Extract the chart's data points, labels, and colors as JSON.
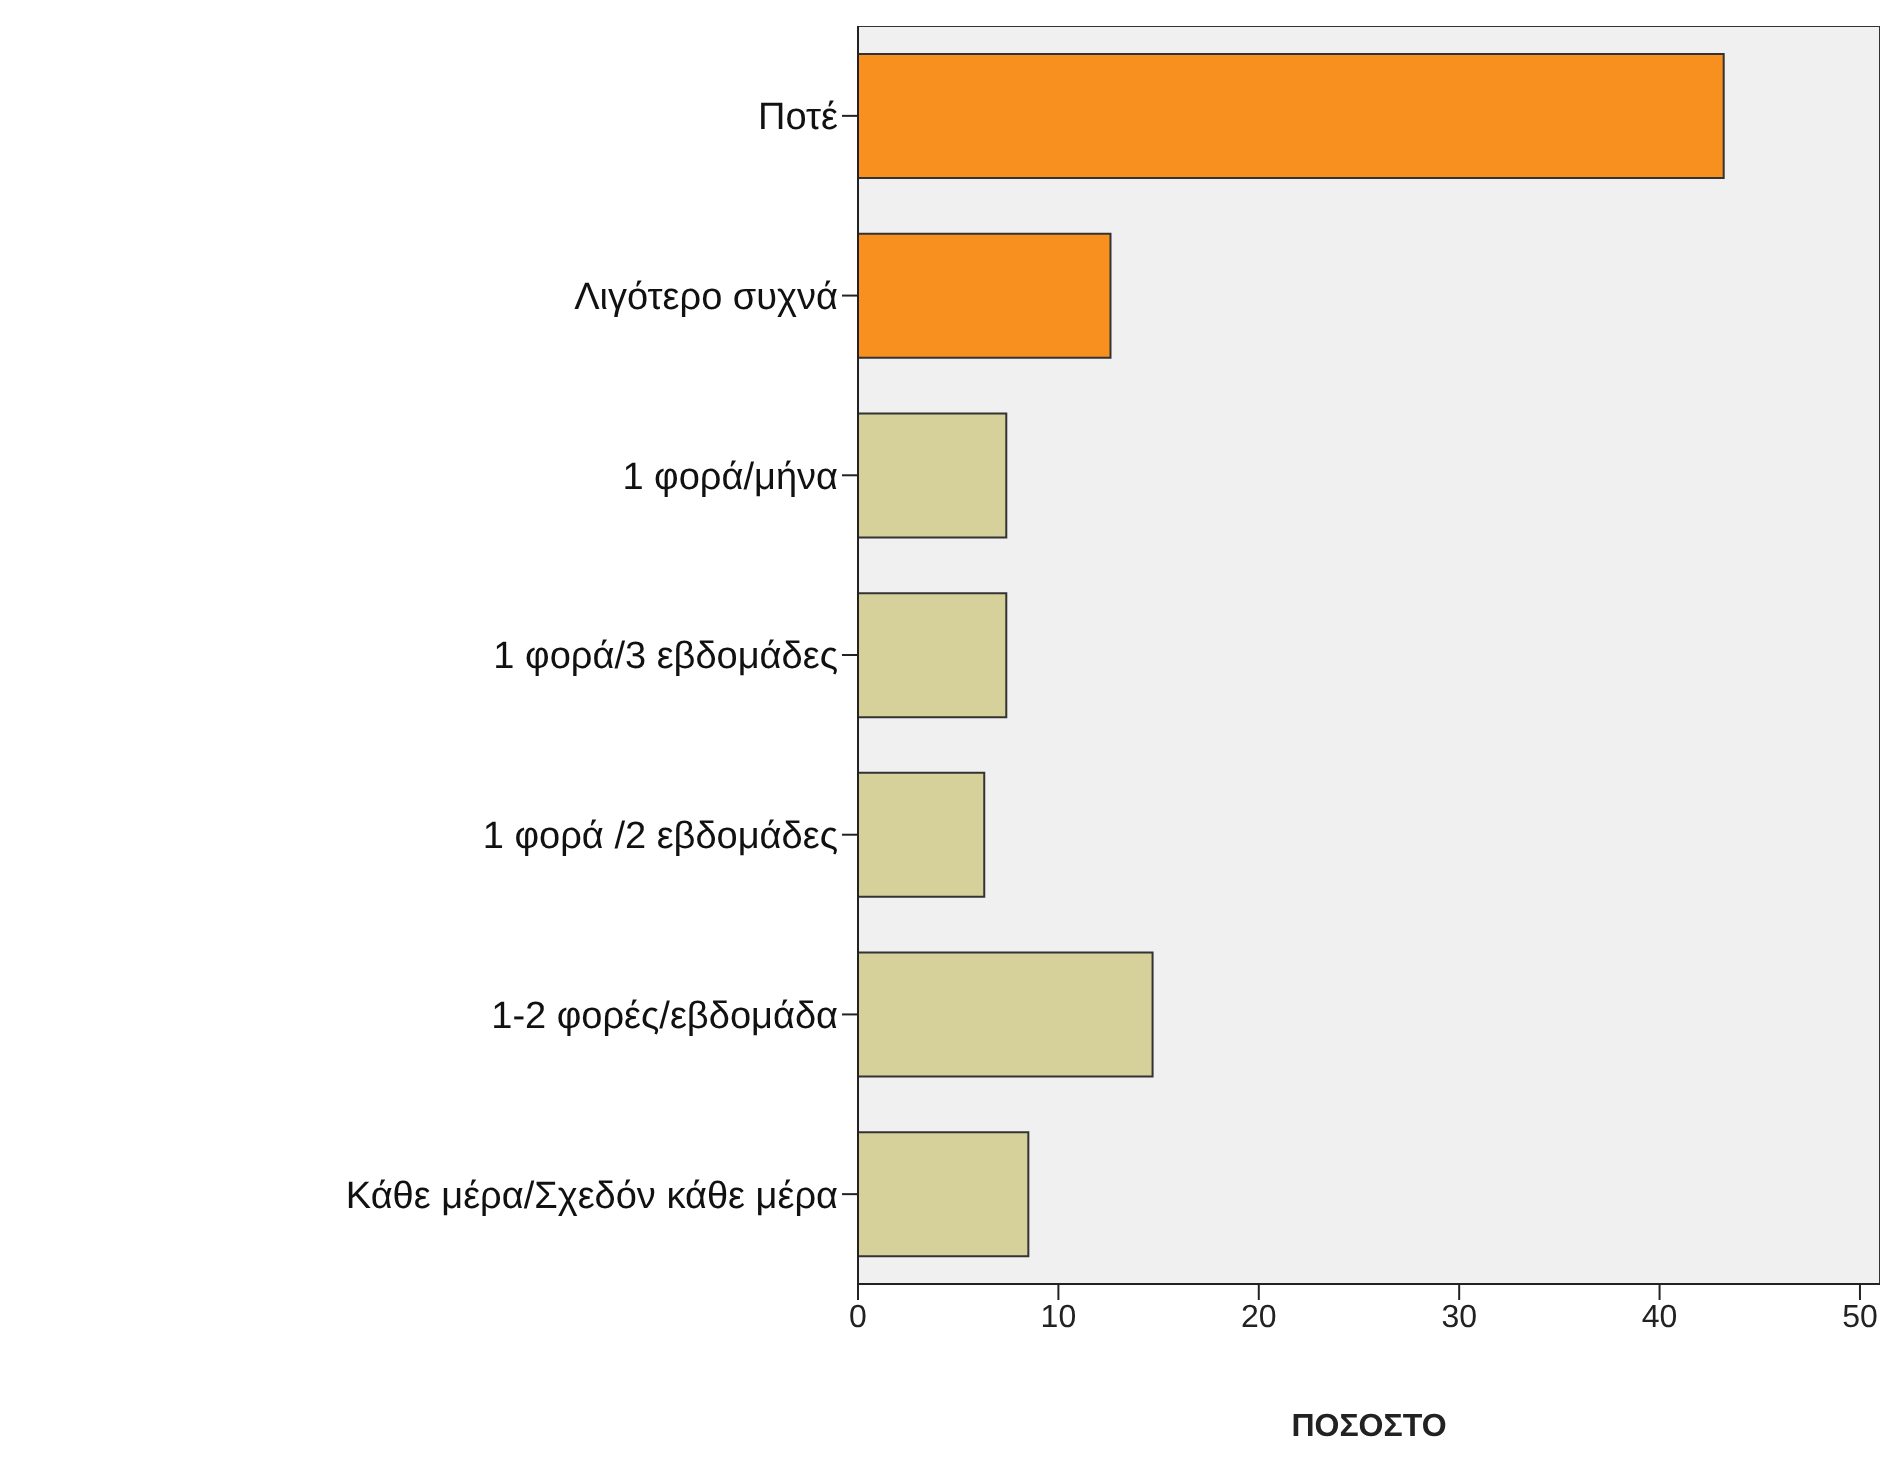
{
  "chart_data": {
    "type": "bar",
    "orientation": "horizontal",
    "xlabel": "ΠΟΣΟΣΤΟ",
    "categories": [
      "Ποτέ",
      "Λιγότερο συχνά",
      "1 φορά/μήνα",
      "1 φορά/3 εβδομάδες",
      "1 φορά /2 εβδομάδες",
      "1-2 φορές/εβδομάδα",
      "Κάθε μέρα/Σχεδόν κάθε μέρα"
    ],
    "values": [
      43.2,
      12.6,
      7.4,
      7.4,
      6.3,
      14.7,
      8.5
    ],
    "colors": [
      "#f7901e",
      "#f7901e",
      "#d6d19a",
      "#d6d19a",
      "#d6d19a",
      "#d6d19a",
      "#d6d19a"
    ],
    "xlim": [
      0,
      51
    ],
    "xticks": [
      0,
      10,
      20,
      30,
      40,
      50
    ]
  }
}
